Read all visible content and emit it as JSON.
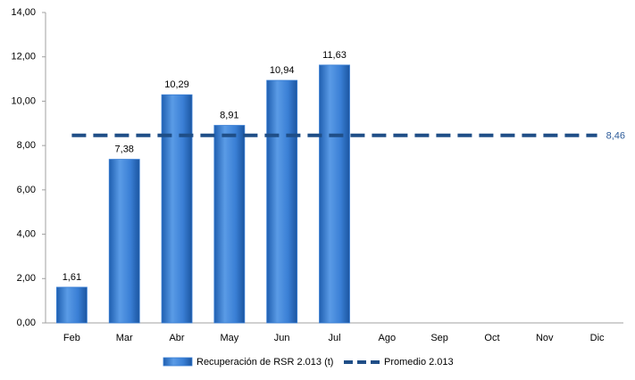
{
  "chart_data": {
    "type": "bar",
    "categories": [
      "Feb",
      "Mar",
      "Abr",
      "May",
      "Jun",
      "Jul",
      "Ago",
      "Sep",
      "Oct",
      "Nov",
      "Dic"
    ],
    "series": [
      {
        "name": "Recuperación de RSR 2.013 (t)",
        "color": "#3a7fd5",
        "values": [
          1.61,
          7.38,
          10.29,
          8.91,
          10.94,
          11.63,
          null,
          null,
          null,
          null,
          null
        ],
        "value_labels": [
          "1,61",
          "7,38",
          "10,29",
          "8,91",
          "10,94",
          "11,63",
          null,
          null,
          null,
          null,
          null
        ]
      },
      {
        "name": "Promedio 2.013",
        "type": "line",
        "color": "#1f4e87",
        "label_color": "#2e5c9a",
        "values": [
          8.46,
          8.46,
          8.46,
          8.46,
          8.46,
          8.46,
          8.46,
          8.46,
          8.46,
          8.46,
          8.46
        ],
        "value_labels": [
          null,
          null,
          null,
          null,
          null,
          null,
          null,
          null,
          null,
          null,
          "8,46"
        ]
      }
    ],
    "ylim": [
      0,
      14
    ],
    "yticks": [
      {
        "value": 0,
        "label": "0,00"
      },
      {
        "value": 2,
        "label": "2,00"
      },
      {
        "value": 4,
        "label": "4,00"
      },
      {
        "value": 6,
        "label": "6,00"
      },
      {
        "value": 8,
        "label": "8,00"
      },
      {
        "value": 10,
        "label": "10,00"
      },
      {
        "value": 12,
        "label": "12,00"
      },
      {
        "value": 14,
        "label": "14,00"
      }
    ],
    "grid": false,
    "legend": "bottom"
  }
}
